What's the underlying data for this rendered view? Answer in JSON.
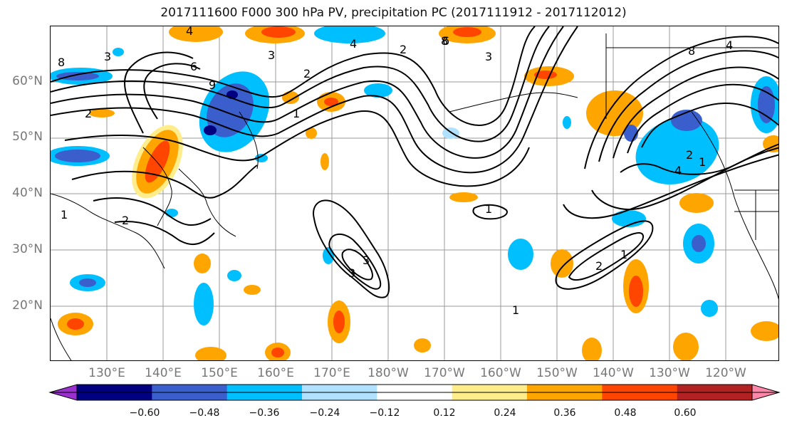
{
  "title": "2017111600 F000 300 hPa PV, precipitation PC (2017111912 - 2017112012)",
  "map": {
    "region": "North Pacific",
    "gridlines": true,
    "lat_labels": [
      "60°N",
      "50°N",
      "40°N",
      "30°N",
      "20°N"
    ],
    "lon_labels": [
      "130°E",
      "140°E",
      "150°E",
      "160°E",
      "170°E",
      "180°W",
      "170°W",
      "160°W",
      "150°W",
      "140°W",
      "130°W",
      "120°W"
    ],
    "contour_color": "#000000",
    "contour_labels": [
      "8",
      "3",
      "6",
      "9",
      "4",
      "2",
      "3",
      "2",
      "1",
      "8",
      "4",
      "3",
      "2",
      "3",
      "6",
      "8",
      "1",
      "4",
      "1",
      "2",
      "3",
      "4",
      "2",
      "1",
      "1",
      "1",
      "2"
    ]
  },
  "colorbar": {
    "colors": [
      "#9b30d0",
      "#000080",
      "#3a5fcd",
      "#00bfff",
      "#b0e2ff",
      "#ffffff",
      "#ffec8b",
      "#ffa500",
      "#ff4500",
      "#b22222",
      "#ff88aa"
    ],
    "ticks": [
      "−0.60",
      "−0.48",
      "−0.36",
      "−0.24",
      "−0.12",
      "0.12",
      "0.24",
      "0.36",
      "0.48",
      "0.60"
    ]
  }
}
